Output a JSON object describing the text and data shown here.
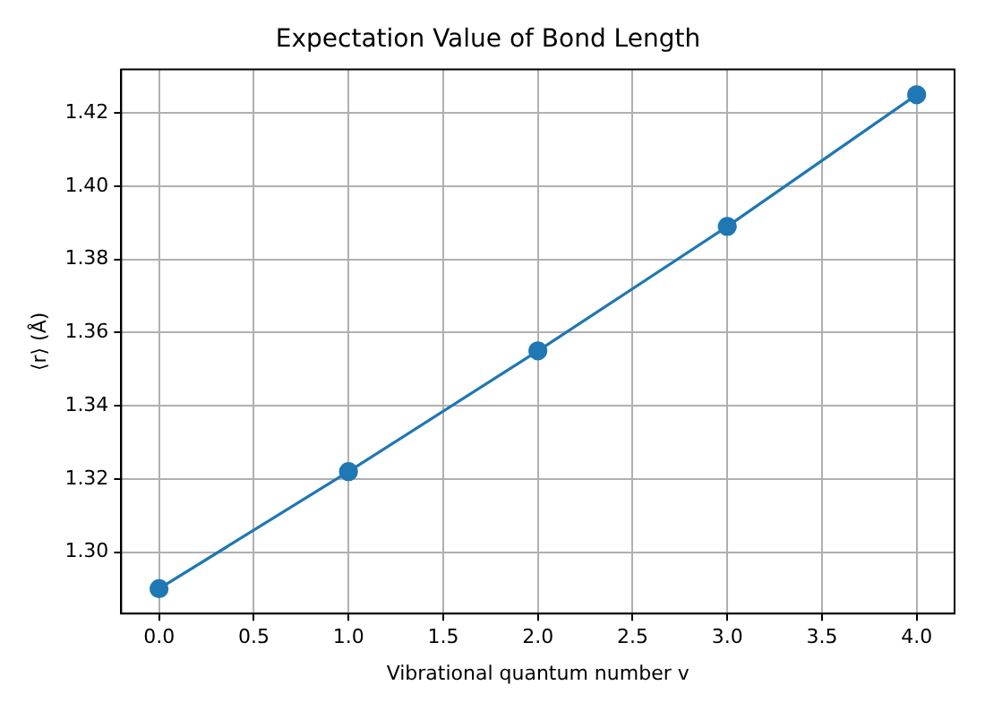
{
  "chart_data": {
    "type": "line",
    "title": "Expectation Value of Bond Length",
    "xlabel": "Vibrational quantum number v",
    "ylabel": "⟨r⟩ (Å)",
    "x": [
      0,
      1,
      2,
      3,
      4
    ],
    "series": [
      {
        "color": "#1f77b4",
        "values": [
          1.29,
          1.322,
          1.355,
          1.389,
          1.425
        ]
      }
    ],
    "xlim": [
      -0.2,
      4.2
    ],
    "xticks": [
      {
        "value": 0,
        "label": "0.0"
      },
      {
        "value": 0.5,
        "label": "0.5"
      },
      {
        "value": 1,
        "label": "1.0"
      },
      {
        "value": 1.5,
        "label": "1.5"
      },
      {
        "value": 2,
        "label": "2.0"
      },
      {
        "value": 2.5,
        "label": "2.5"
      },
      {
        "value": 3,
        "label": "3.0"
      },
      {
        "value": 3.5,
        "label": "3.5"
      },
      {
        "value": 4,
        "label": "4.0"
      }
    ],
    "ylim": [
      1.2832,
      1.4319
    ],
    "yticks": [
      {
        "value": 1.3,
        "label": "1.30"
      },
      {
        "value": 1.32,
        "label": "1.32"
      },
      {
        "value": 1.34,
        "label": "1.34"
      },
      {
        "value": 1.36,
        "label": "1.36"
      },
      {
        "value": 1.38,
        "label": "1.38"
      },
      {
        "value": 1.4,
        "label": "1.40"
      },
      {
        "value": 1.42,
        "label": "1.42"
      }
    ],
    "grid": true,
    "legend": false,
    "marker": "circle",
    "line_style": "solid"
  }
}
